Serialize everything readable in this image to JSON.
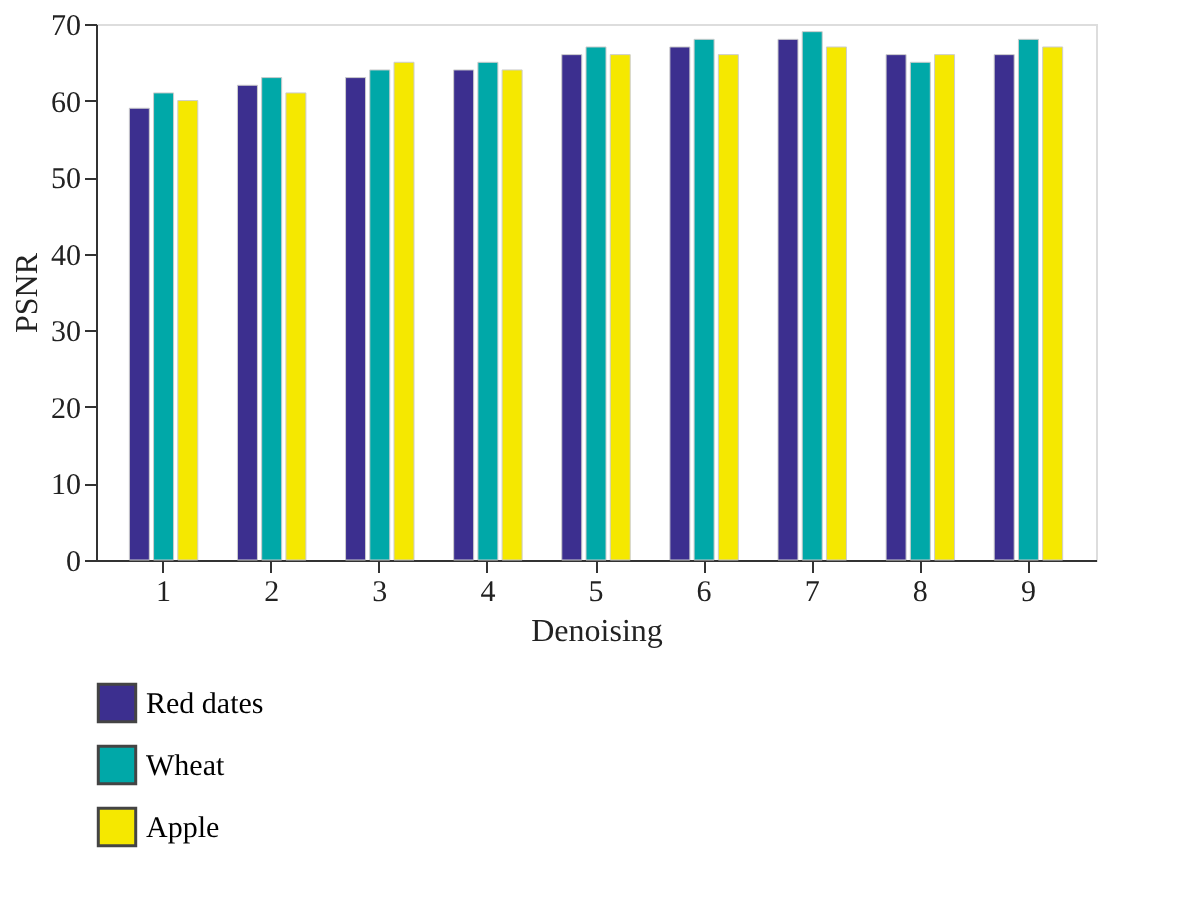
{
  "chart_data": {
    "type": "bar",
    "xlabel": "Denoising",
    "ylabel": "PSNR",
    "categories": [
      "1",
      "2",
      "3",
      "4",
      "5",
      "6",
      "7",
      "8",
      "9"
    ],
    "series": [
      {
        "name": "Red dates",
        "color": "#3c2f8f",
        "values": [
          59,
          62,
          63,
          64,
          66,
          67,
          68,
          66,
          66
        ]
      },
      {
        "name": "Wheat",
        "color": "#00a8a8",
        "values": [
          61,
          63,
          64,
          65,
          67,
          68,
          69,
          65,
          68
        ]
      },
      {
        "name": "Apple",
        "color": "#f5e800",
        "values": [
          60,
          61,
          65,
          64,
          66,
          66,
          67,
          66,
          67
        ]
      }
    ],
    "ylim": [
      0,
      70
    ],
    "yticks": [
      0,
      10,
      20,
      30,
      40,
      50,
      60,
      70
    ],
    "grid": false,
    "legend": "bottom"
  }
}
